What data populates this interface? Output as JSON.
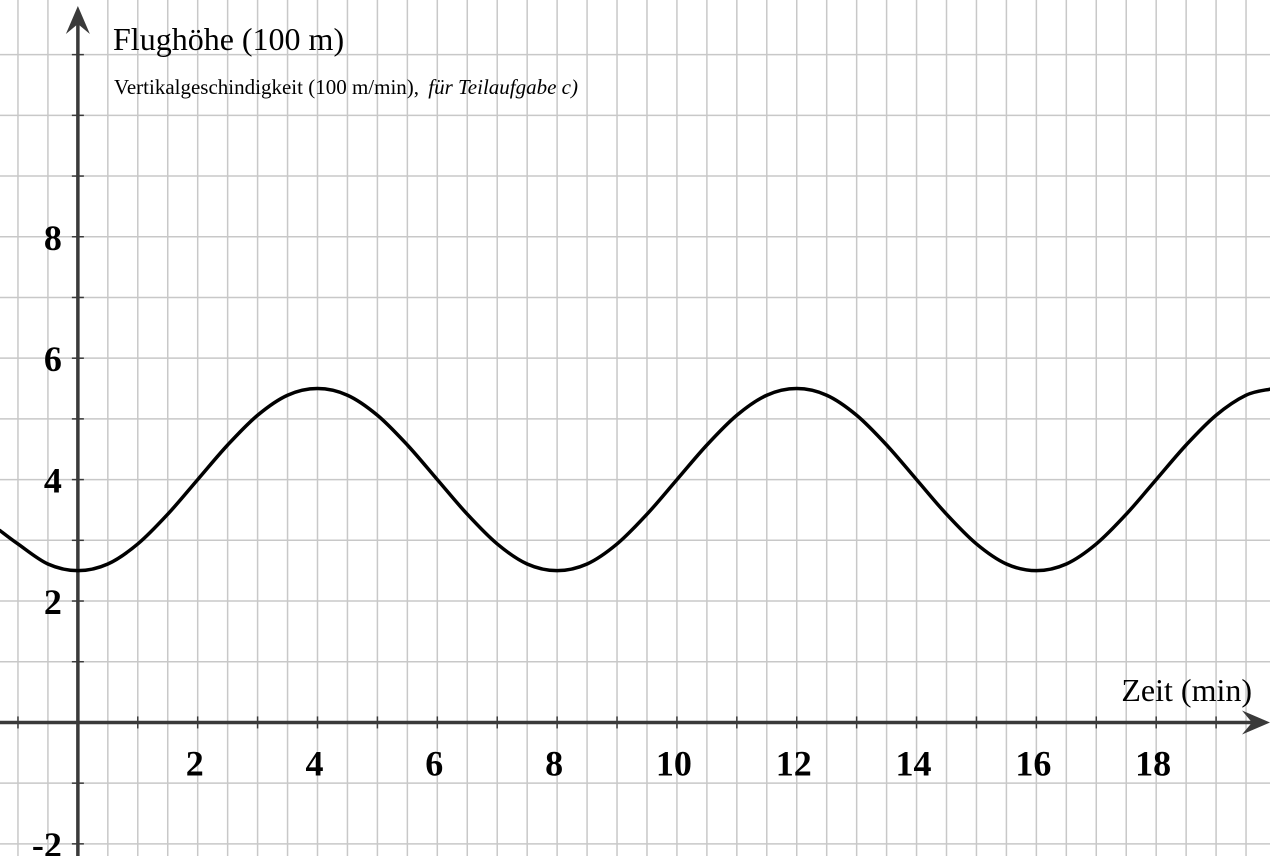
{
  "chart_data": {
    "type": "line",
    "ylabel": "Flughöhe (100 m)",
    "ylabel_secondary": "Vertikalgeschindigkeit (100 m/min),",
    "ylabel_secondary_italic": "für Teilaufgabe c)",
    "xlabel": "Zeit (min)",
    "xlim": [
      -1.3,
      19.9
    ],
    "ylim": [
      -2.2,
      11.9
    ],
    "grid": true,
    "x_tick_labels": [
      {
        "value": 2,
        "label": "2"
      },
      {
        "value": 4,
        "label": "4"
      },
      {
        "value": 6,
        "label": "6"
      },
      {
        "value": 8,
        "label": "8"
      },
      {
        "value": 10,
        "label": "10"
      },
      {
        "value": 12,
        "label": "12"
      },
      {
        "value": 14,
        "label": "14"
      },
      {
        "value": 16,
        "label": "16"
      },
      {
        "value": 18,
        "label": "18"
      }
    ],
    "y_tick_labels": [
      {
        "value": 2,
        "label": "2"
      },
      {
        "value": 4,
        "label": "4"
      },
      {
        "value": 6,
        "label": "6"
      },
      {
        "value": 8,
        "label": "8"
      },
      {
        "value": -2,
        "label": "-2"
      }
    ],
    "series": [
      {
        "x": [
          -1.3,
          -1,
          -0.5,
          0,
          0.5,
          1,
          1.5,
          2,
          2.5,
          3,
          3.5,
          4,
          4.5,
          5,
          5.5,
          6,
          6.5,
          7,
          7.5,
          8,
          8.5,
          9,
          9.5,
          10,
          10.5,
          11,
          11.5,
          12,
          12.5,
          13,
          13.5,
          14,
          14.5,
          15,
          15.5,
          16,
          16.5,
          17,
          17.5,
          18,
          18.5,
          19,
          19.5,
          19.9
        ],
        "y": [
          3.16,
          2.94,
          2.61,
          2.5,
          2.61,
          2.94,
          3.43,
          4.0,
          4.57,
          5.06,
          5.39,
          5.5,
          5.39,
          5.06,
          4.57,
          4.0,
          3.43,
          2.94,
          2.61,
          2.5,
          2.61,
          2.94,
          3.43,
          4.0,
          4.57,
          5.06,
          5.39,
          5.5,
          5.39,
          5.06,
          4.57,
          4.0,
          3.43,
          2.94,
          2.61,
          2.5,
          2.61,
          2.94,
          3.43,
          4.0,
          4.57,
          5.06,
          5.39,
          5.49
        ]
      }
    ]
  }
}
